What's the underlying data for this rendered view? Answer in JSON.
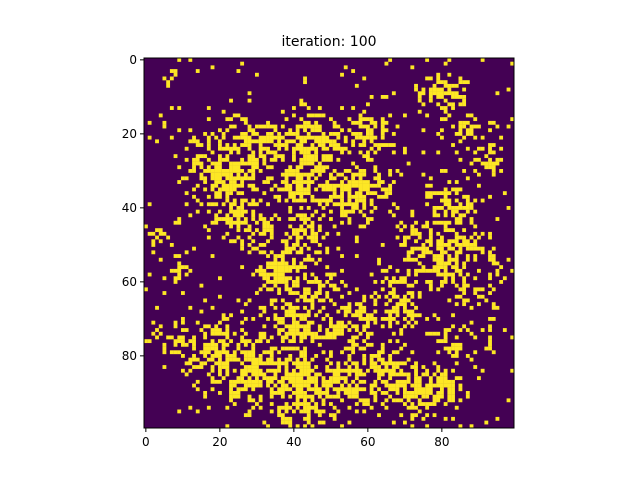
{
  "chart_data": {
    "type": "heatmap",
    "title": "iteration: 100",
    "xlabel": "",
    "ylabel": "",
    "grid_size": [
      100,
      100
    ],
    "xlim": [
      -0.5,
      99.5
    ],
    "ylim": [
      99.5,
      -0.5
    ],
    "x_ticks": [
      0,
      20,
      40,
      60,
      80
    ],
    "y_ticks": [
      0,
      20,
      40,
      60,
      80
    ],
    "cell_values": [
      0,
      1
    ],
    "colormap": "viridis",
    "colors": {
      "value_0": "#440154",
      "value_1": "#fde725"
    },
    "grid": false,
    "legend": "none"
  }
}
